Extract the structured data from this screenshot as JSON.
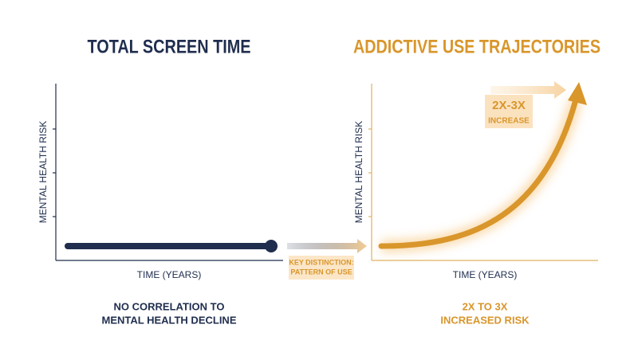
{
  "left_panel": {
    "title": "TOTAL SCREEN TIME",
    "y_label": "MENTAL HEALTH RISK",
    "x_label": "TIME (YEARS)",
    "caption": [
      "NO CORRELATION TO",
      "MENTAL HEALTH DECLINE"
    ]
  },
  "key_distinction": [
    "KEY DISTINCTION:",
    "PATTERN OF USE"
  ],
  "right_panel": {
    "title": "ADDICTIVE USE TRAJECTORIES",
    "y_label": "MENTAL HEALTH RISK",
    "x_label": "TIME (YEARS)",
    "badge": [
      "2X-3X",
      "INCREASE"
    ],
    "caption": [
      "2X TO 3X",
      "INCREASED RISK"
    ]
  }
}
